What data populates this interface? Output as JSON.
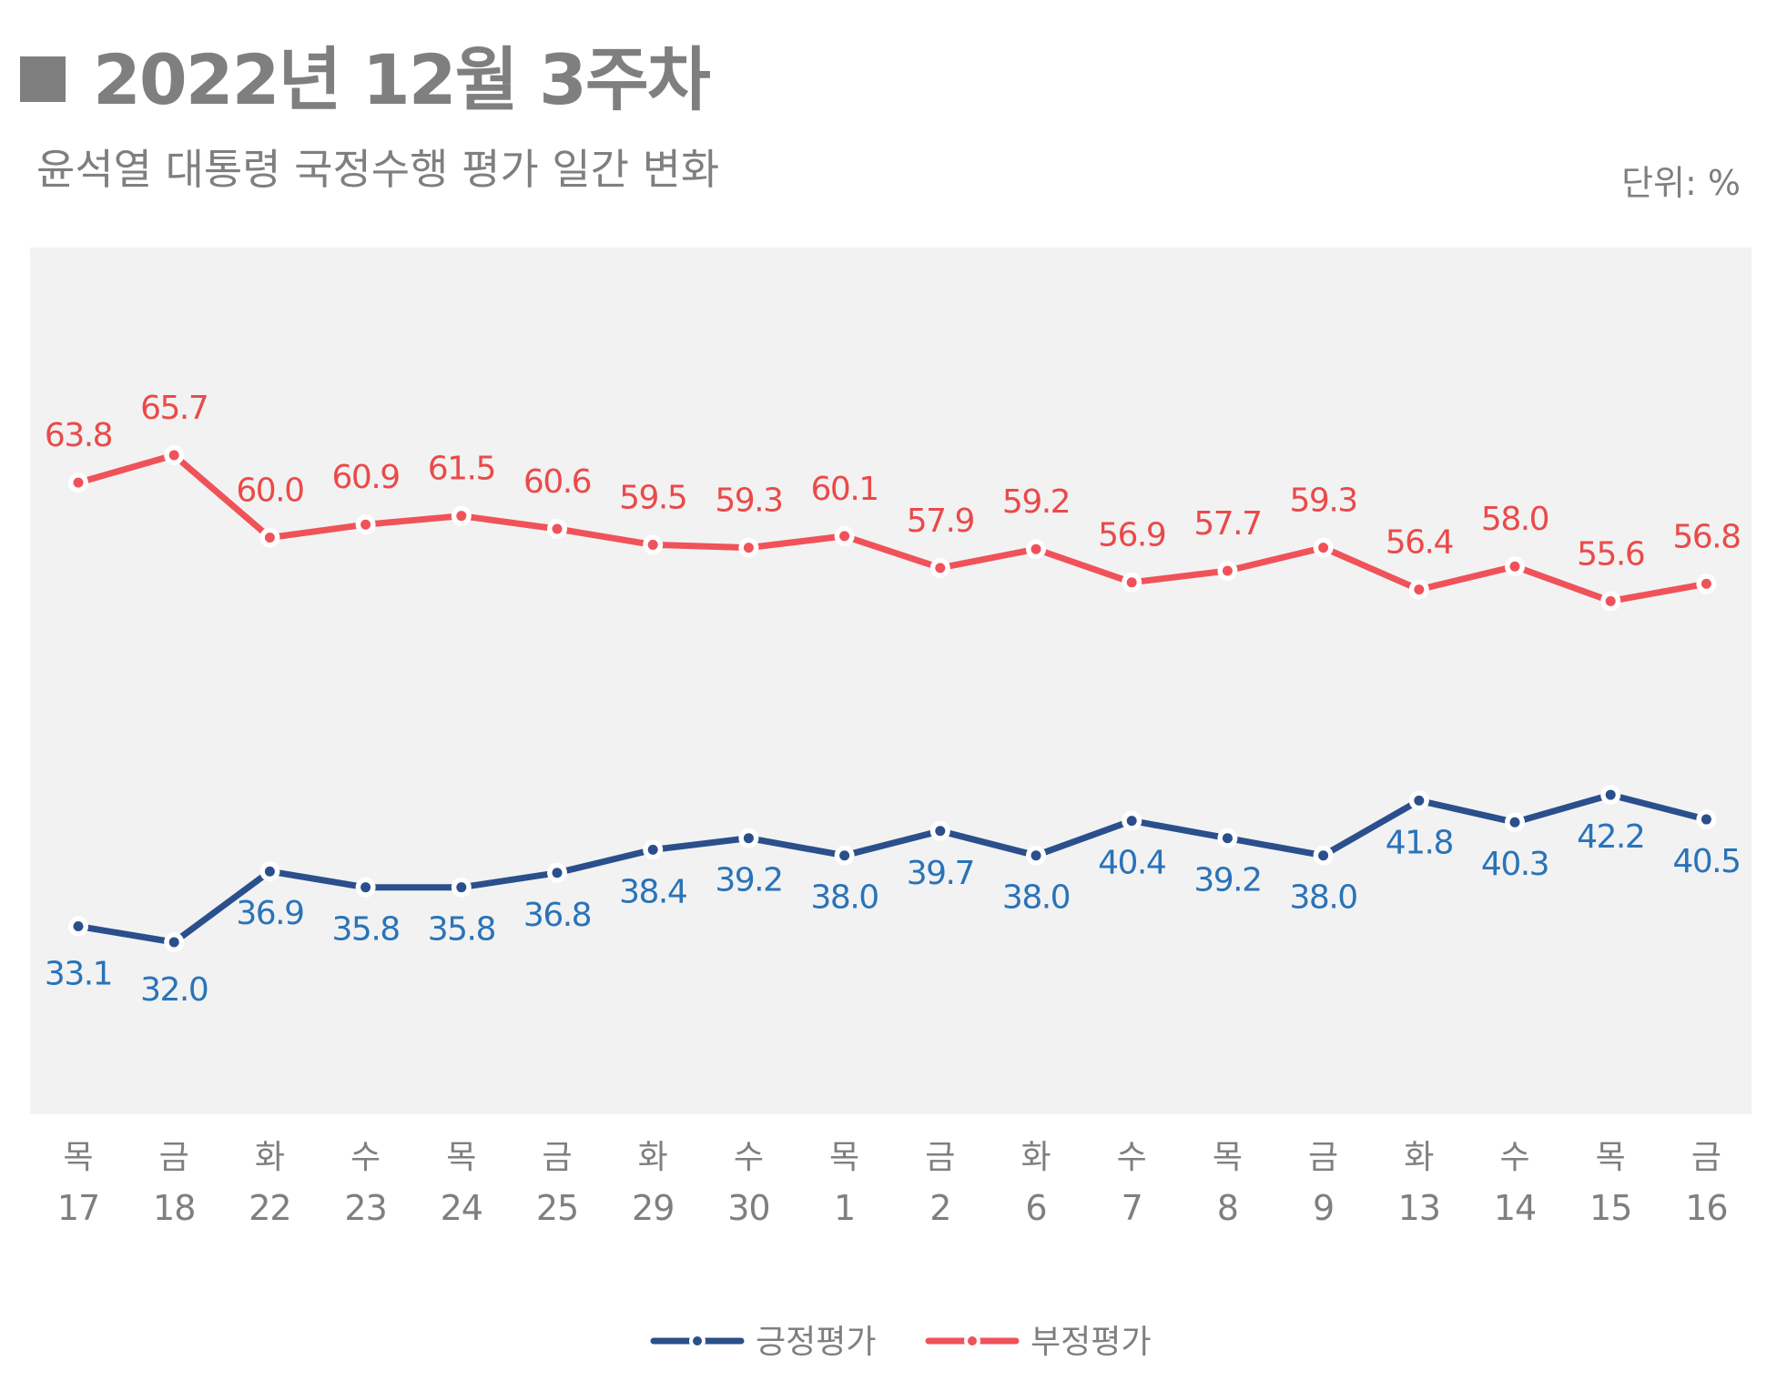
{
  "header": {
    "title": "2022년 12월 3주차",
    "subtitle": "윤석열 대통령 국정수행 평가 일간 변화",
    "unit": "단위: %"
  },
  "colors": {
    "positive": "#2b4f8c",
    "positive_label": "#2a73b8",
    "negative": "#f0525a",
    "negative_label": "#ea4a4a",
    "plot_bg": "#f2f2f2",
    "axis_text": "#7f7f7f"
  },
  "chart_data": {
    "type": "line",
    "title": "2022년 12월 3주차",
    "subtitle": "윤석열 대통령 국정수행 평가 일간 변화",
    "unit": "%",
    "xlabel": "",
    "ylabel": "",
    "ylim": [
      20,
      80
    ],
    "grid": false,
    "legend_position": "bottom-center",
    "weekdays": [
      "목",
      "금",
      "화",
      "수",
      "목",
      "금",
      "화",
      "수",
      "목",
      "금",
      "화",
      "수",
      "목",
      "금",
      "화",
      "수",
      "목",
      "금"
    ],
    "dates": [
      "17",
      "18",
      "22",
      "23",
      "24",
      "25",
      "29",
      "30",
      "1",
      "2",
      "6",
      "7",
      "8",
      "9",
      "13",
      "14",
      "15",
      "16"
    ],
    "series": [
      {
        "name": "긍정평가",
        "key": "positive",
        "values": [
          33.1,
          32.0,
          36.9,
          35.8,
          35.8,
          36.8,
          38.4,
          39.2,
          38.0,
          39.7,
          38.0,
          40.4,
          39.2,
          38.0,
          41.8,
          40.3,
          42.2,
          40.5
        ],
        "labels": [
          "33.1",
          "32.0",
          "36.9",
          "35.8",
          "35.8",
          "36.8",
          "38.4",
          "39.2",
          "38.0",
          "39.7",
          "38.0",
          "40.4",
          "39.2",
          "38.0",
          "41.8",
          "40.3",
          "42.2",
          "40.5"
        ]
      },
      {
        "name": "부정평가",
        "key": "negative",
        "values": [
          63.8,
          65.7,
          60.0,
          60.9,
          61.5,
          60.6,
          59.5,
          59.3,
          60.1,
          57.9,
          59.2,
          56.9,
          57.7,
          59.3,
          56.4,
          58.0,
          55.6,
          56.8
        ],
        "labels": [
          "63.8",
          "65.7",
          "60.0",
          "60.9",
          "61.5",
          "60.6",
          "59.5",
          "59.3",
          "60.1",
          "57.9",
          "59.2",
          "56.9",
          "57.7",
          "59.3",
          "56.4",
          "58.0",
          "55.6",
          "56.8"
        ]
      }
    ]
  }
}
